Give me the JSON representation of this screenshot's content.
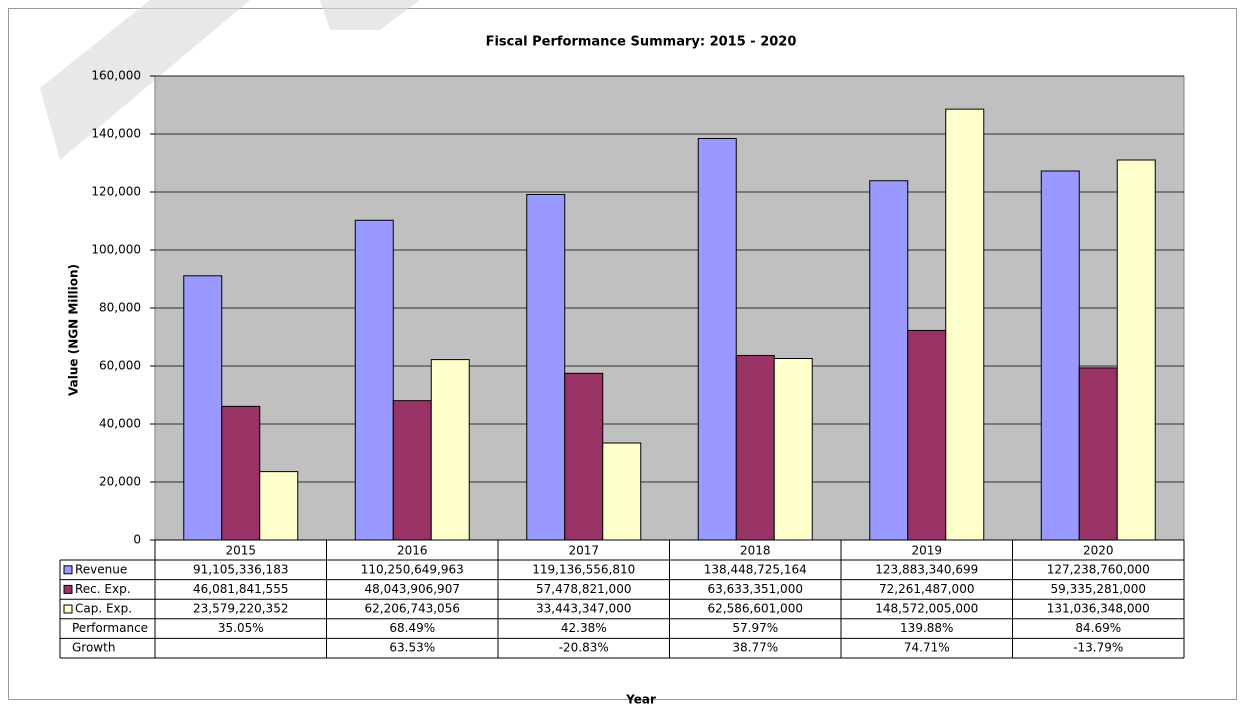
{
  "chart_data": {
    "type": "bar",
    "title": "Fiscal Performance Summary: 2015 - 2020",
    "x_label": "Year",
    "y_label": "Value (NGN Million)",
    "categories": [
      "2015",
      "2016",
      "2017",
      "2018",
      "2019",
      "2020"
    ],
    "series": [
      {
        "name": "Revenue",
        "color": "#9999ff",
        "values": [
          91105.336183,
          110250.649963,
          119136.55681,
          138448.725164,
          123883.340699,
          127238.76
        ],
        "value_labels": [
          "91,105,336,183",
          "110,250,649,963",
          "119,136,556,810",
          "138,448,725,164",
          "123,883,340,699",
          "127,238,760,000"
        ]
      },
      {
        "name": "Rec. Exp.",
        "color": "#993366",
        "values": [
          46081.841555,
          48043.906907,
          57478.821,
          63633.351,
          72261.487,
          59335.281
        ],
        "value_labels": [
          "46,081,841,555",
          "48,043,906,907",
          "57,478,821,000",
          "63,633,351,000",
          "72,261,487,000",
          "59,335,281,000"
        ]
      },
      {
        "name": "Cap. Exp.",
        "color": "#ffffcc",
        "values": [
          23579.220352,
          62206.743056,
          33443.347,
          62586.601,
          148572.005,
          131036.348
        ],
        "value_labels": [
          "23,579,220,352",
          "62,206,743,056",
          "33,443,347,000",
          "62,586,601,000",
          "148,572,005,000",
          "131,036,348,000"
        ]
      }
    ],
    "table_rows": [
      {
        "name": "Performance",
        "labels": [
          "35.05%",
          "68.49%",
          "42.38%",
          "57.97%",
          "139.88%",
          "84.69%"
        ]
      },
      {
        "name": "Growth",
        "labels": [
          null,
          "63.53%",
          "-20.83%",
          "38.77%",
          "74.71%",
          "-13.79%"
        ]
      }
    ],
    "ylim": [
      0,
      160000
    ],
    "yticks": [
      0,
      {
        "value": 20000,
        "label": "20,000"
      },
      {
        "value": 40000,
        "label": "40,000"
      },
      {
        "value": 60000,
        "label": "60,000"
      },
      {
        "value": 80000,
        "label": "80,000"
      },
      {
        "value": 100000,
        "label": "100,000"
      },
      {
        "value": 120000,
        "label": "120,000"
      },
      {
        "value": 140000,
        "label": "140,000"
      },
      {
        "value": 160000,
        "label": "160,000"
      }
    ],
    "grid": true,
    "plot_background": "#c0c0c0"
  }
}
